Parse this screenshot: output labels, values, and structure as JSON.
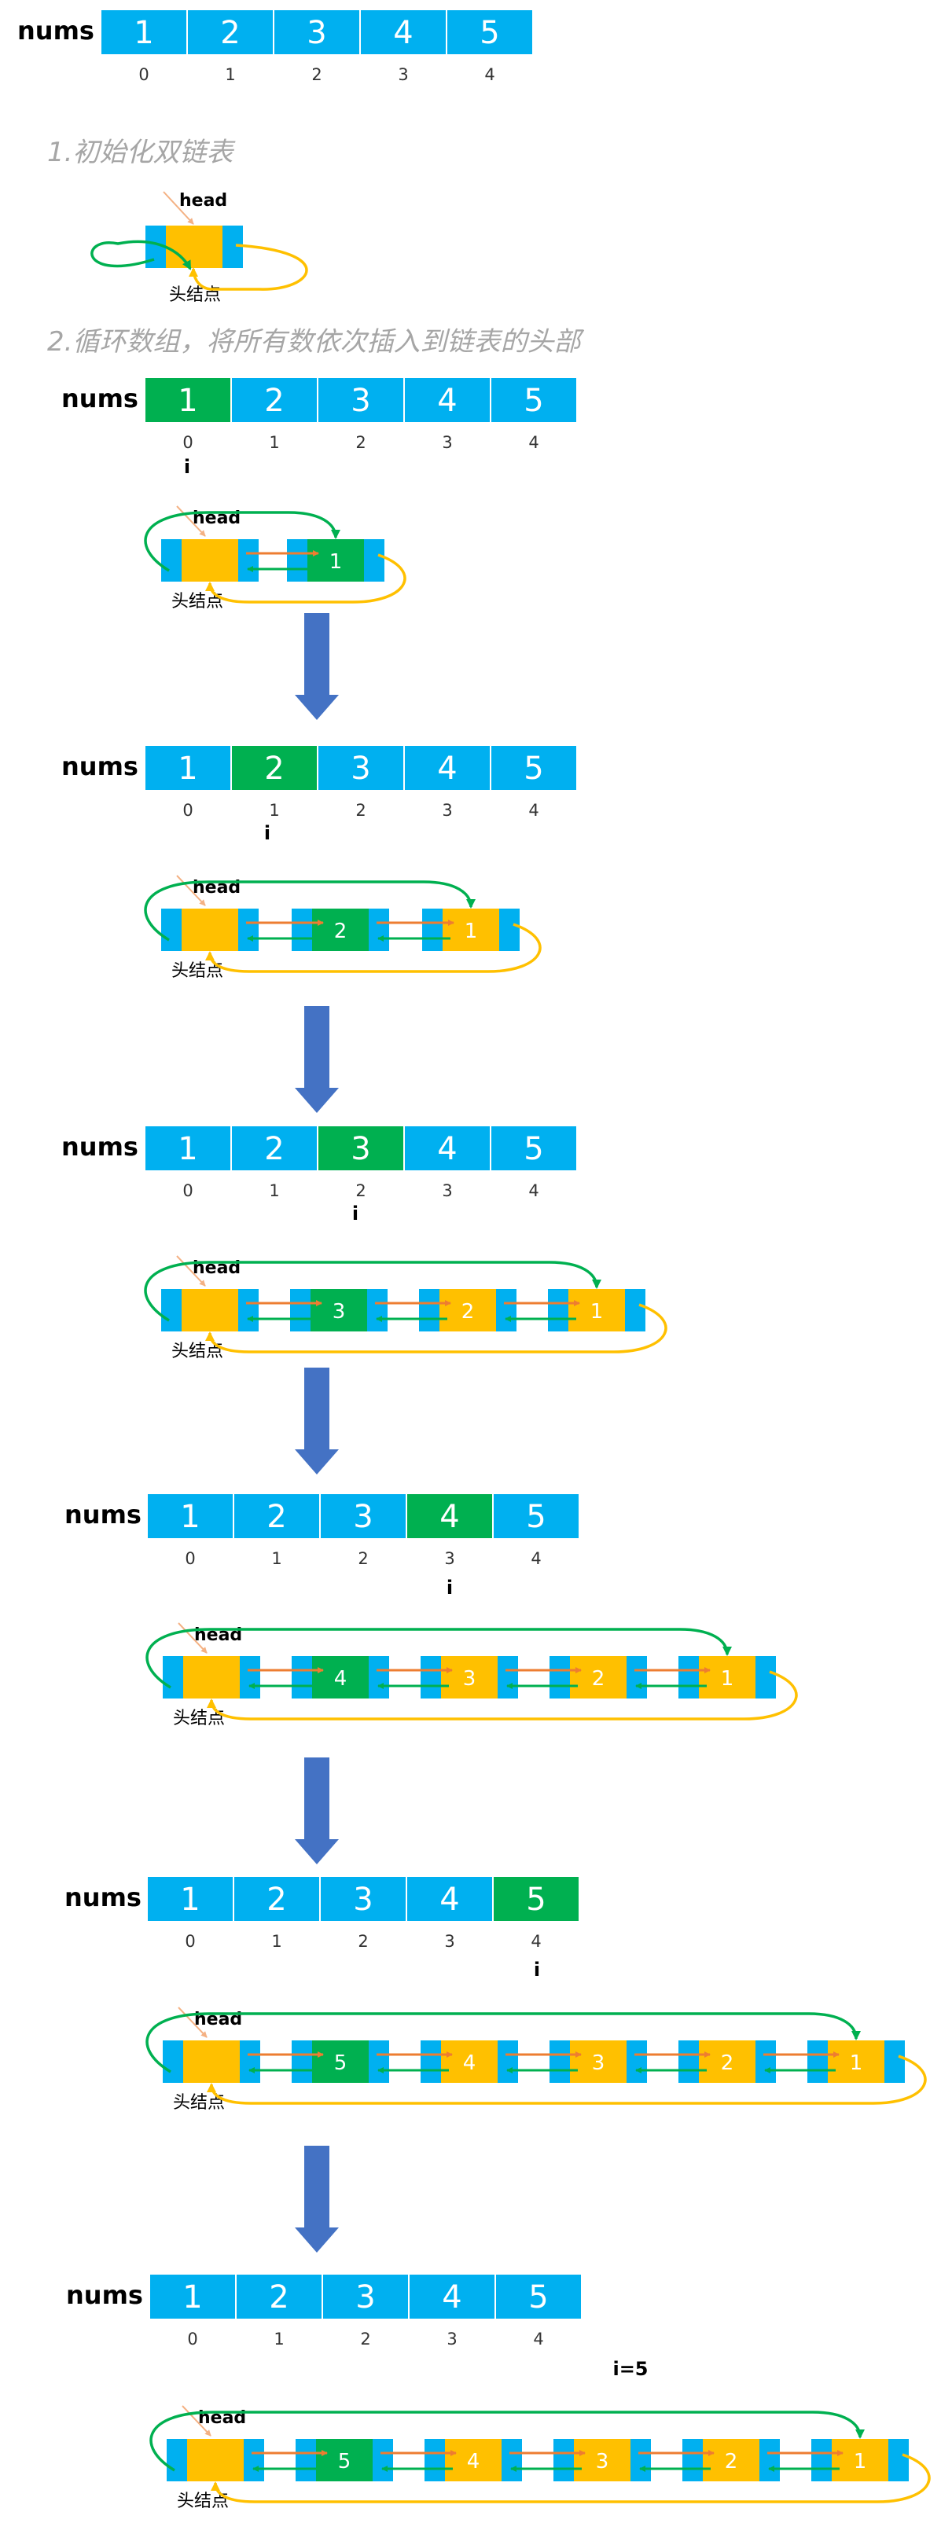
{
  "colors": {
    "cyan": "#00B0F0",
    "orange": "#FFC000",
    "green": "#00B050",
    "arrow_down": "#4472C4",
    "fwd_arrow": "#ED7D31",
    "back_arrow": "#00B050",
    "title_gray": "#A6A6A6"
  },
  "labels": {
    "nums": "nums",
    "head": "head",
    "head_node": "头结点",
    "index_marker": "i"
  },
  "titles": {
    "step1": "1.初始化双链表",
    "step2": "2.循环数组，将所有数依次插入到链表的头部"
  },
  "array": {
    "values": [
      "1",
      "2",
      "3",
      "4",
      "5"
    ],
    "indices": [
      "0",
      "1",
      "2",
      "3",
      "4"
    ]
  },
  "states": [
    {
      "highlight": -1,
      "index_label": "",
      "list": []
    },
    {
      "highlight": 0,
      "index_label": "i",
      "list": [
        "1"
      ]
    },
    {
      "highlight": 1,
      "index_label": "i",
      "list": [
        "2",
        "1"
      ]
    },
    {
      "highlight": 2,
      "index_label": "i",
      "list": [
        "3",
        "2",
        "1"
      ]
    },
    {
      "highlight": 3,
      "index_label": "i",
      "list": [
        "4",
        "3",
        "2",
        "1"
      ]
    },
    {
      "highlight": 4,
      "index_label": "i",
      "list": [
        "5",
        "4",
        "3",
        "2",
        "1"
      ]
    },
    {
      "highlight": -1,
      "index_label": "i=5",
      "list": [
        "5",
        "4",
        "3",
        "2",
        "1"
      ]
    }
  ]
}
